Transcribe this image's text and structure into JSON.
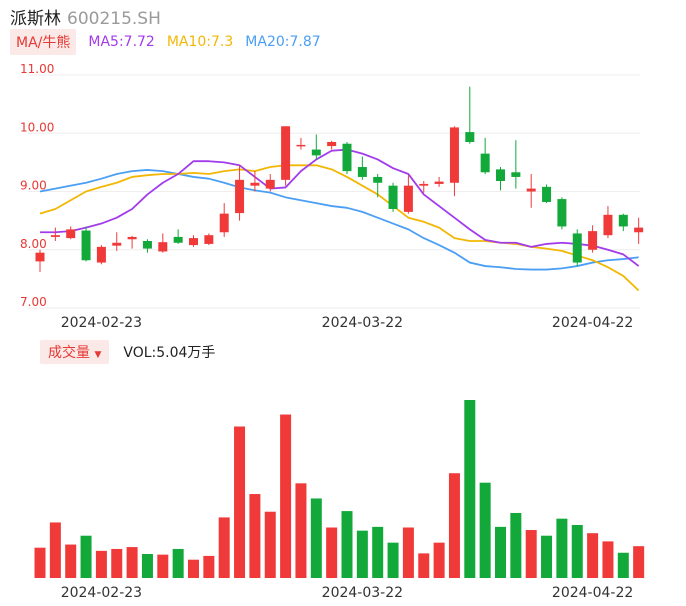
{
  "header": {
    "name": "派斯林",
    "code": "600215.SH"
  },
  "ma": {
    "label": "MA/牛熊",
    "ma5": {
      "text": "MA5:7.72",
      "color": "#a23bec"
    },
    "ma10": {
      "text": "MA10:7.3",
      "color": "#f2b705"
    },
    "ma20": {
      "text": "MA20:7.87",
      "color": "#4a9ff5"
    }
  },
  "volume": {
    "label": "成交量",
    "value_text": "VOL:5.04万手"
  },
  "colors": {
    "up": "#f03a3a",
    "down": "#12a83a"
  },
  "chart_data": [
    {
      "type": "candlestick",
      "ylim": [
        7.0,
        11.0
      ],
      "ytick_labels": [
        "11.00",
        "10.00",
        "9.00",
        "8.00",
        "7.00"
      ],
      "date_labels": [
        "2024-02-23",
        "2024-03-22",
        "2024-04-22"
      ],
      "candles": [
        {
          "o": 7.8,
          "c": 7.95,
          "h": 8.0,
          "l": 7.62
        },
        {
          "o": 8.22,
          "c": 8.25,
          "h": 8.38,
          "l": 8.15
        },
        {
          "o": 8.2,
          "c": 8.35,
          "h": 8.4,
          "l": 8.18
        },
        {
          "o": 8.33,
          "c": 7.82,
          "h": 8.4,
          "l": 7.8
        },
        {
          "o": 7.78,
          "c": 8.05,
          "h": 8.08,
          "l": 7.75
        },
        {
          "o": 8.07,
          "c": 8.12,
          "h": 8.3,
          "l": 7.98
        },
        {
          "o": 8.18,
          "c": 8.22,
          "h": 8.24,
          "l": 8.02
        },
        {
          "o": 8.15,
          "c": 8.02,
          "h": 8.18,
          "l": 7.95
        },
        {
          "o": 7.97,
          "c": 8.13,
          "h": 8.28,
          "l": 7.95
        },
        {
          "o": 8.22,
          "c": 8.12,
          "h": 8.35,
          "l": 8.1
        },
        {
          "o": 8.08,
          "c": 8.2,
          "h": 8.25,
          "l": 8.05
        },
        {
          "o": 8.1,
          "c": 8.25,
          "h": 8.28,
          "l": 8.08
        },
        {
          "o": 8.3,
          "c": 8.62,
          "h": 8.8,
          "l": 8.22
        },
        {
          "o": 8.63,
          "c": 9.2,
          "h": 9.45,
          "l": 8.5
        },
        {
          "o": 9.1,
          "c": 9.15,
          "h": 9.35,
          "l": 9.0
        },
        {
          "o": 9.05,
          "c": 9.2,
          "h": 9.3,
          "l": 9.0
        },
        {
          "o": 9.2,
          "c": 10.12,
          "h": 10.12,
          "l": 9.1
        },
        {
          "o": 9.78,
          "c": 9.8,
          "h": 9.92,
          "l": 9.72
        },
        {
          "o": 9.72,
          "c": 9.62,
          "h": 9.98,
          "l": 9.55
        },
        {
          "o": 9.78,
          "c": 9.85,
          "h": 9.87,
          "l": 9.72
        },
        {
          "o": 9.82,
          "c": 9.35,
          "h": 9.85,
          "l": 9.3
        },
        {
          "o": 9.42,
          "c": 9.25,
          "h": 9.6,
          "l": 9.2
        },
        {
          "o": 9.25,
          "c": 9.15,
          "h": 9.3,
          "l": 8.9
        },
        {
          "o": 9.1,
          "c": 8.7,
          "h": 9.15,
          "l": 8.65
        },
        {
          "o": 8.65,
          "c": 9.1,
          "h": 9.28,
          "l": 8.62
        },
        {
          "o": 9.1,
          "c": 9.13,
          "h": 9.18,
          "l": 8.98
        },
        {
          "o": 9.13,
          "c": 9.17,
          "h": 9.25,
          "l": 9.08
        },
        {
          "o": 9.15,
          "c": 10.1,
          "h": 10.12,
          "l": 8.92
        },
        {
          "o": 10.02,
          "c": 9.85,
          "h": 10.8,
          "l": 9.82
        },
        {
          "o": 9.65,
          "c": 9.33,
          "h": 9.92,
          "l": 9.3
        },
        {
          "o": 9.38,
          "c": 9.18,
          "h": 9.42,
          "l": 9.02
        },
        {
          "o": 9.33,
          "c": 9.25,
          "h": 9.88,
          "l": 9.05
        },
        {
          "o": 9.0,
          "c": 9.05,
          "h": 9.3,
          "l": 8.72
        },
        {
          "o": 9.08,
          "c": 8.82,
          "h": 9.12,
          "l": 8.8
        },
        {
          "o": 8.87,
          "c": 8.4,
          "h": 8.9,
          "l": 8.35
        },
        {
          "o": 8.28,
          "c": 7.78,
          "h": 8.35,
          "l": 7.72
        },
        {
          "o": 8.0,
          "c": 8.32,
          "h": 8.42,
          "l": 7.95
        },
        {
          "o": 8.25,
          "c": 8.6,
          "h": 8.75,
          "l": 8.2
        },
        {
          "o": 8.6,
          "c": 8.4,
          "h": 8.62,
          "l": 8.32
        },
        {
          "o": 8.3,
          "c": 8.38,
          "h": 8.55,
          "l": 8.1
        }
      ],
      "ma5": [
        8.3,
        8.3,
        8.32,
        8.38,
        8.45,
        8.55,
        8.7,
        8.95,
        9.15,
        9.3,
        9.52,
        9.52,
        9.5,
        9.45,
        9.25,
        9.05,
        9.07,
        9.35,
        9.55,
        9.7,
        9.72,
        9.65,
        9.55,
        9.4,
        9.3,
        8.95,
        8.75,
        8.55,
        8.35,
        8.17,
        8.12,
        8.12,
        8.05,
        8.1,
        8.12,
        8.1,
        8.07,
        8.0,
        7.92,
        7.72
      ],
      "ma10": [
        8.62,
        8.7,
        8.85,
        9.0,
        9.08,
        9.15,
        9.25,
        9.28,
        9.3,
        9.3,
        9.32,
        9.3,
        9.35,
        9.38,
        9.35,
        9.42,
        9.45,
        9.45,
        9.45,
        9.38,
        9.25,
        9.1,
        8.95,
        8.75,
        8.55,
        8.48,
        8.38,
        8.2,
        8.15,
        8.15,
        8.12,
        8.1,
        8.05,
        8.02,
        7.98,
        7.9,
        7.82,
        7.7,
        7.55,
        7.3
      ],
      "ma20": [
        9.0,
        9.05,
        9.1,
        9.15,
        9.22,
        9.3,
        9.35,
        9.37,
        9.35,
        9.3,
        9.25,
        9.22,
        9.15,
        9.07,
        9.02,
        8.98,
        8.9,
        8.85,
        8.8,
        8.75,
        8.72,
        8.65,
        8.55,
        8.45,
        8.35,
        8.2,
        8.08,
        7.95,
        7.78,
        7.72,
        7.7,
        7.67,
        7.66,
        7.66,
        7.68,
        7.72,
        7.78,
        7.82,
        7.84,
        7.87
      ]
    },
    {
      "type": "bar",
      "title": "成交量",
      "unit": "万手",
      "date_labels": [
        "2024-02-23",
        "2024-03-22",
        "2024-04-22"
      ],
      "values": [
        4.8,
        8.8,
        5.3,
        6.7,
        4.3,
        4.6,
        4.9,
        3.8,
        3.7,
        4.6,
        2.9,
        3.5,
        9.6,
        24.0,
        13.3,
        10.5,
        25.9,
        15.0,
        12.6,
        8.0,
        10.6,
        7.5,
        8.1,
        5.6,
        8.0,
        3.9,
        5.6,
        16.6,
        28.2,
        15.1,
        8.1,
        10.3,
        7.6,
        6.7,
        9.4,
        8.4,
        7.1,
        5.8,
        4.0,
        5.04
      ]
    }
  ]
}
